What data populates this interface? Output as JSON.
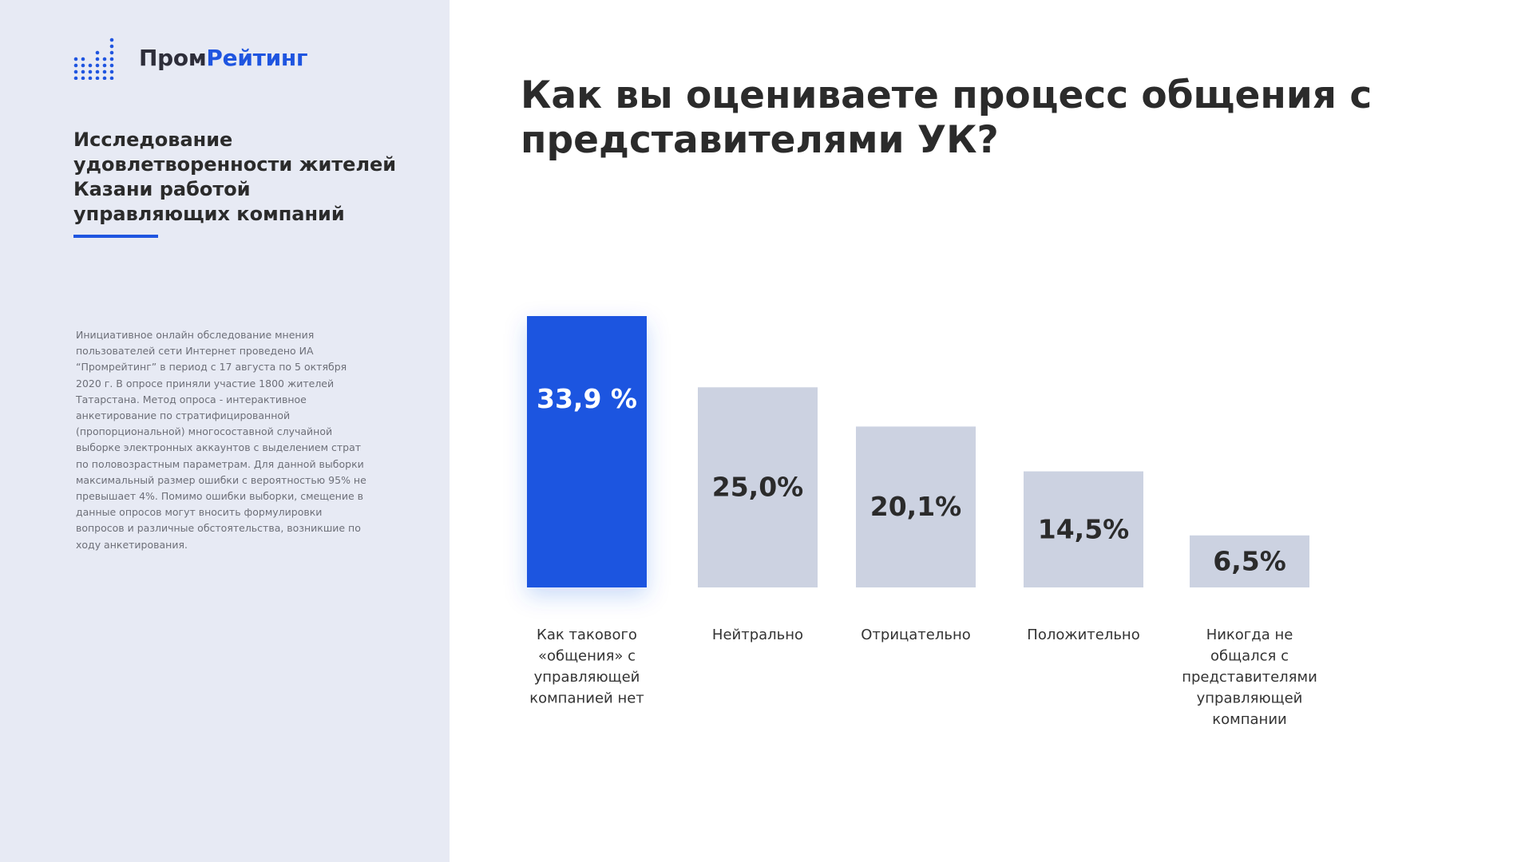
{
  "brand": {
    "name_part1": "Пром",
    "name_part2": "Рейтинг",
    "accent_color": "#1f55e0",
    "icon": "dot-matrix-logo-icon"
  },
  "sidebar": {
    "study_title": "Исследование удовлетворенности жителей Казани работой управляющих компаний",
    "method_text": "Инициативное онлайн обследование мнения пользователей сети Интернет проведено ИА “Промрейтинг” в период с 17 августа по 5 октября 2020 г. В опросе приняли участие 1800 жителей Татарстана. Метод опроса - интерактивное анкетирование по стратифицированной (пропорциональной) многосоставной случайной выборке электронных аккаунтов с выделением страт по половозрастным параметрам. Для данной выборки максимальный размер ошибки с вероятностью 95% не превышает 4%. Помимо ошибки выборки, смещение в данные опросов могут вносить формулировки вопросов и различные обстоятельства, возникшие по ходу анкетирования."
  },
  "chart_data": {
    "type": "bar",
    "title": "Как вы оцениваете процесс общения с представителями УК?",
    "categories": [
      "Как такового «общения» с управляющей компанией нет",
      "Нейтрально",
      "Отрицательно",
      "Положительно",
      "Никогда не общался с представителями управляющей компании"
    ],
    "category_lines": [
      [
        "Как такового",
        "«общения» с",
        "управляющей",
        "компанией нет"
      ],
      [
        "Нейтрально"
      ],
      [
        "Отрицательно"
      ],
      [
        "Положительно"
      ],
      [
        "Никогда не",
        "общался с",
        "представителями",
        "управляющей",
        "компании"
      ]
    ],
    "values": [
      33.9,
      25.0,
      20.1,
      14.5,
      6.5
    ],
    "data_labels": [
      "33,9 %",
      "25,0%",
      "20,1%",
      "14,5%",
      "6,5%"
    ],
    "highlight_index": 0,
    "colors": {
      "highlight": "#1f55e0",
      "default": "#ccd2e1",
      "highlight_text": "#ffffff",
      "default_text": "#2b2b2b"
    },
    "ylim": [
      0,
      33.9
    ],
    "grid": false,
    "legend": "none"
  }
}
